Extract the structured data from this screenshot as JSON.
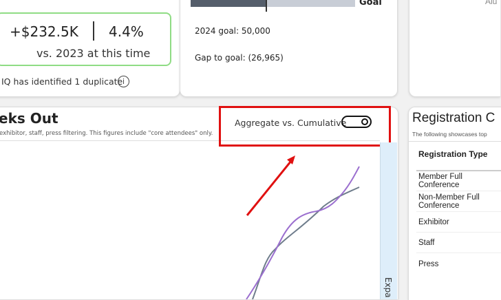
{
  "revenue_card": {
    "delta_amount": "+$232.5K",
    "delta_percent": "4.4%",
    "comparison": "vs. 2023 at this time",
    "duplicate_note": "IQ has identified 1 duplicate",
    "accent": "#8fdc84"
  },
  "goal_card": {
    "goal_label": "Goal",
    "goal_text": "2024 goal: 50,000",
    "gap_text": "Gap to goal: (26,965)",
    "progress_fraction": 0.46,
    "bar_fill_color": "#555e6b",
    "bar_track_color": "#c8cdd6"
  },
  "right_card": {
    "partial_text": "Alu"
  },
  "weeks_out_card": {
    "title": "eks Out",
    "subtitle": "exhibitor, staff, press filtering. This figures include \"core attendees\" only.",
    "toggle_label": "Aggregate vs. Cumulative",
    "toggle_on": true,
    "expand_label": "Expa",
    "series_colors": [
      "#6f7d8c",
      "#9b6fcf"
    ],
    "highlight_color": "#e01010"
  },
  "registration_card": {
    "title": "Registration C",
    "subtitle": "The following showcases top",
    "column_header": "Registration Type",
    "rows": [
      "Member Full Conference",
      "Non-Member Full Conference",
      "Exhibitor",
      "Staff",
      "Press"
    ]
  }
}
